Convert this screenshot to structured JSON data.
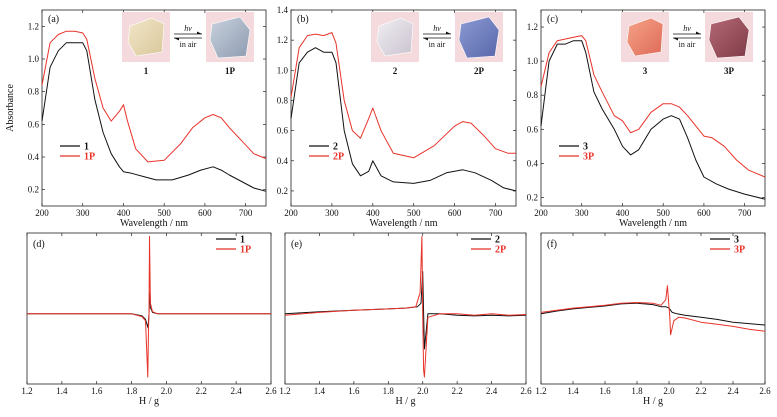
{
  "colors": {
    "dark": "#111111",
    "light": "#e8332a"
  },
  "chart_data": [
    {
      "type": "line",
      "panel": "(a)",
      "xlabel": "Wavelength / nm",
      "ylabel": "Absorbance",
      "xlim": [
        200,
        750
      ],
      "ylim": [
        0.1,
        1.3
      ],
      "xticks": [
        200,
        300,
        400,
        500,
        600,
        700
      ],
      "yticks": [
        0.2,
        0.4,
        0.6,
        0.8,
        1.0,
        1.2
      ],
      "legend": "bottom-left",
      "inset": {
        "left": "1",
        "right": "1P",
        "forward": "hν",
        "back": "in air",
        "c1": [
          "#f2e6c8",
          "#d9c89c"
        ],
        "c2": [
          "#c9d2de",
          "#8d9bb0"
        ]
      },
      "series": [
        {
          "name": "1",
          "color": "#111111",
          "x": [
            200,
            220,
            240,
            260,
            280,
            300,
            310,
            330,
            350,
            370,
            390,
            400,
            420,
            450,
            480,
            520,
            560,
            590,
            620,
            640,
            660,
            690,
            720,
            750
          ],
          "y": [
            0.62,
            0.95,
            1.05,
            1.1,
            1.1,
            1.1,
            1.05,
            0.75,
            0.55,
            0.42,
            0.34,
            0.31,
            0.3,
            0.28,
            0.26,
            0.26,
            0.29,
            0.32,
            0.34,
            0.32,
            0.29,
            0.25,
            0.21,
            0.19
          ]
        },
        {
          "name": "1P",
          "color": "#e8332a",
          "x": [
            200,
            220,
            240,
            260,
            280,
            300,
            310,
            330,
            350,
            370,
            390,
            400,
            410,
            430,
            460,
            500,
            540,
            570,
            600,
            620,
            640,
            660,
            690,
            720,
            750
          ],
          "y": [
            0.84,
            1.1,
            1.15,
            1.17,
            1.17,
            1.16,
            1.12,
            0.88,
            0.7,
            0.62,
            0.68,
            0.72,
            0.62,
            0.45,
            0.37,
            0.38,
            0.48,
            0.58,
            0.64,
            0.66,
            0.64,
            0.58,
            0.5,
            0.42,
            0.39
          ]
        }
      ]
    },
    {
      "type": "line",
      "panel": "(b)",
      "xlabel": "Wavelength / nm",
      "ylabel": "",
      "xlim": [
        200,
        750
      ],
      "ylim": [
        0.1,
        1.4
      ],
      "xticks": [
        200,
        300,
        400,
        500,
        600,
        700
      ],
      "yticks": [
        0.2,
        0.4,
        0.6,
        0.8,
        1.0,
        1.2,
        1.4
      ],
      "legend": "bottom-left",
      "inset": {
        "left": "2",
        "right": "2P",
        "forward": "hν",
        "back": "in air",
        "c1": [
          "#f1eef2",
          "#c9c3cf"
        ],
        "c2": [
          "#8c9ad4",
          "#5867aa"
        ]
      },
      "series": [
        {
          "name": "2",
          "color": "#111111",
          "x": [
            200,
            220,
            240,
            260,
            280,
            300,
            310,
            330,
            350,
            370,
            390,
            400,
            420,
            450,
            500,
            540,
            580,
            620,
            650,
            690,
            720,
            750
          ],
          "y": [
            0.68,
            1.05,
            1.12,
            1.15,
            1.12,
            1.12,
            1.05,
            0.6,
            0.38,
            0.3,
            0.33,
            0.4,
            0.3,
            0.26,
            0.25,
            0.27,
            0.32,
            0.34,
            0.32,
            0.27,
            0.22,
            0.2
          ]
        },
        {
          "name": "2P",
          "color": "#e8332a",
          "x": [
            200,
            220,
            240,
            260,
            280,
            300,
            310,
            330,
            350,
            370,
            390,
            400,
            420,
            450,
            500,
            550,
            600,
            620,
            640,
            670,
            700,
            730,
            750
          ],
          "y": [
            0.82,
            1.15,
            1.23,
            1.24,
            1.23,
            1.25,
            1.18,
            0.8,
            0.6,
            0.55,
            0.68,
            0.75,
            0.6,
            0.45,
            0.42,
            0.5,
            0.63,
            0.66,
            0.65,
            0.57,
            0.48,
            0.45,
            0.45
          ]
        }
      ]
    },
    {
      "type": "line",
      "panel": "(c)",
      "xlabel": "Wavelength / nm",
      "ylabel": "",
      "xlim": [
        200,
        750
      ],
      "ylim": [
        0.15,
        1.3
      ],
      "xticks": [
        200,
        300,
        400,
        500,
        600,
        700
      ],
      "yticks": [
        0.2,
        0.4,
        0.6,
        0.8,
        1.0,
        1.2
      ],
      "legend": "bottom-left",
      "inset": {
        "left": "3",
        "right": "3P",
        "forward": "hν",
        "back": "in air",
        "c1": [
          "#f7a389",
          "#dd6a57"
        ],
        "c2": [
          "#b46a75",
          "#7f3a47"
        ]
      },
      "series": [
        {
          "name": "3",
          "color": "#111111",
          "x": [
            200,
            220,
            240,
            260,
            280,
            300,
            310,
            330,
            350,
            380,
            400,
            420,
            440,
            470,
            500,
            520,
            540,
            560,
            580,
            600,
            630,
            660,
            700,
            750
          ],
          "y": [
            0.62,
            1.0,
            1.1,
            1.1,
            1.12,
            1.12,
            1.05,
            0.82,
            0.72,
            0.6,
            0.5,
            0.45,
            0.48,
            0.6,
            0.66,
            0.68,
            0.66,
            0.55,
            0.42,
            0.32,
            0.28,
            0.25,
            0.22,
            0.19
          ]
        },
        {
          "name": "3P",
          "color": "#e8332a",
          "x": [
            200,
            220,
            240,
            260,
            280,
            300,
            310,
            330,
            350,
            380,
            400,
            420,
            440,
            470,
            500,
            520,
            540,
            560,
            580,
            600,
            620,
            650,
            680,
            710,
            750
          ],
          "y": [
            0.85,
            1.05,
            1.12,
            1.13,
            1.14,
            1.15,
            1.12,
            0.92,
            0.82,
            0.68,
            0.65,
            0.58,
            0.6,
            0.7,
            0.75,
            0.75,
            0.73,
            0.68,
            0.62,
            0.56,
            0.55,
            0.5,
            0.42,
            0.36,
            0.32
          ]
        }
      ]
    },
    {
      "type": "line",
      "panel": "(d)",
      "xlabel": "H / g",
      "ylabel": "",
      "xlim": [
        1.2,
        2.6
      ],
      "ylim": [
        -1.0,
        1.15
      ],
      "xticks": [
        1.2,
        1.4,
        1.6,
        1.8,
        2.0,
        2.2,
        2.4,
        2.6
      ],
      "legend": "top-right",
      "series": [
        {
          "name": "1",
          "color": "#111111",
          "x": [
            1.2,
            1.6,
            1.8,
            1.86,
            1.88,
            1.895,
            1.9,
            1.905,
            1.91,
            1.92,
            1.95,
            2.0,
            2.2,
            2.6
          ],
          "y": [
            0,
            0,
            0,
            -0.03,
            -0.08,
            -0.2,
            0.0,
            0.3,
            0.08,
            0.02,
            0.0,
            0.0,
            0.0,
            0.0
          ]
        },
        {
          "name": "1P",
          "color": "#e8332a",
          "x": [
            1.2,
            1.6,
            1.8,
            1.86,
            1.88,
            1.893,
            1.897,
            1.9,
            1.903,
            1.908,
            1.92,
            1.95,
            2.0,
            2.2,
            2.6
          ],
          "y": [
            0,
            0,
            0,
            -0.04,
            -0.1,
            -0.9,
            -0.2,
            0.0,
            1.1,
            0.15,
            0.03,
            0.0,
            0.0,
            0.0,
            0.0
          ]
        }
      ]
    },
    {
      "type": "line",
      "panel": "(e)",
      "xlabel": "H / g",
      "ylabel": "",
      "xlim": [
        1.2,
        2.6
      ],
      "ylim": [
        -1.0,
        1.15
      ],
      "xticks": [
        1.2,
        1.4,
        1.6,
        1.8,
        2.0,
        2.2,
        2.4,
        2.6
      ],
      "legend": "top-right",
      "series": [
        {
          "name": "2",
          "color": "#111111",
          "x": [
            1.2,
            1.4,
            1.6,
            1.8,
            1.9,
            1.97,
            1.99,
            2.0,
            2.01,
            2.03,
            2.1,
            2.2,
            2.3,
            2.4,
            2.5,
            2.6
          ],
          "y": [
            0.0,
            0.03,
            0.05,
            0.07,
            0.08,
            0.1,
            0.15,
            0.6,
            -0.5,
            0.0,
            0.0,
            -0.02,
            -0.03,
            -0.02,
            -0.03,
            -0.02
          ]
        },
        {
          "name": "2P",
          "color": "#e8332a",
          "x": [
            1.2,
            1.4,
            1.6,
            1.8,
            1.9,
            1.96,
            1.985,
            1.995,
            2.0,
            2.005,
            2.01,
            2.03,
            2.1,
            2.2,
            2.3,
            2.4,
            2.5,
            2.6
          ],
          "y": [
            -0.02,
            0.02,
            0.05,
            0.07,
            0.08,
            0.1,
            0.3,
            1.1,
            0.0,
            -0.8,
            -0.9,
            -0.05,
            0.0,
            0.0,
            -0.02,
            0.0,
            -0.02,
            -0.01
          ]
        }
      ]
    },
    {
      "type": "line",
      "panel": "(f)",
      "xlabel": "H / g",
      "ylabel": "",
      "xlim": [
        1.2,
        2.6
      ],
      "ylim": [
        -1.0,
        1.15
      ],
      "xticks": [
        1.2,
        1.4,
        1.6,
        1.8,
        2.0,
        2.2,
        2.4,
        2.6
      ],
      "legend": "top-right",
      "series": [
        {
          "name": "3",
          "color": "#111111",
          "x": [
            1.2,
            1.3,
            1.4,
            1.5,
            1.6,
            1.7,
            1.8,
            1.9,
            1.95,
            1.98,
            2.0,
            2.02,
            2.05,
            2.1,
            2.2,
            2.3,
            2.4,
            2.5,
            2.6
          ],
          "y": [
            0.0,
            0.04,
            0.07,
            0.09,
            0.11,
            0.14,
            0.15,
            0.13,
            0.1,
            0.1,
            0.08,
            0.02,
            0.0,
            -0.02,
            -0.05,
            -0.08,
            -0.12,
            -0.14,
            -0.16
          ]
        },
        {
          "name": "3P",
          "color": "#e8332a",
          "x": [
            1.2,
            1.3,
            1.4,
            1.5,
            1.6,
            1.7,
            1.8,
            1.9,
            1.95,
            1.98,
            1.99,
            2.0,
            2.005,
            2.01,
            2.03,
            2.06,
            2.1,
            2.2,
            2.3,
            2.4,
            2.5,
            2.6
          ],
          "y": [
            0.02,
            0.05,
            0.08,
            0.1,
            0.12,
            0.15,
            0.16,
            0.15,
            0.12,
            0.2,
            0.4,
            0.1,
            -0.05,
            -0.3,
            -0.1,
            -0.05,
            -0.06,
            -0.12,
            -0.15,
            -0.18,
            -0.22,
            -0.25
          ]
        }
      ]
    }
  ]
}
